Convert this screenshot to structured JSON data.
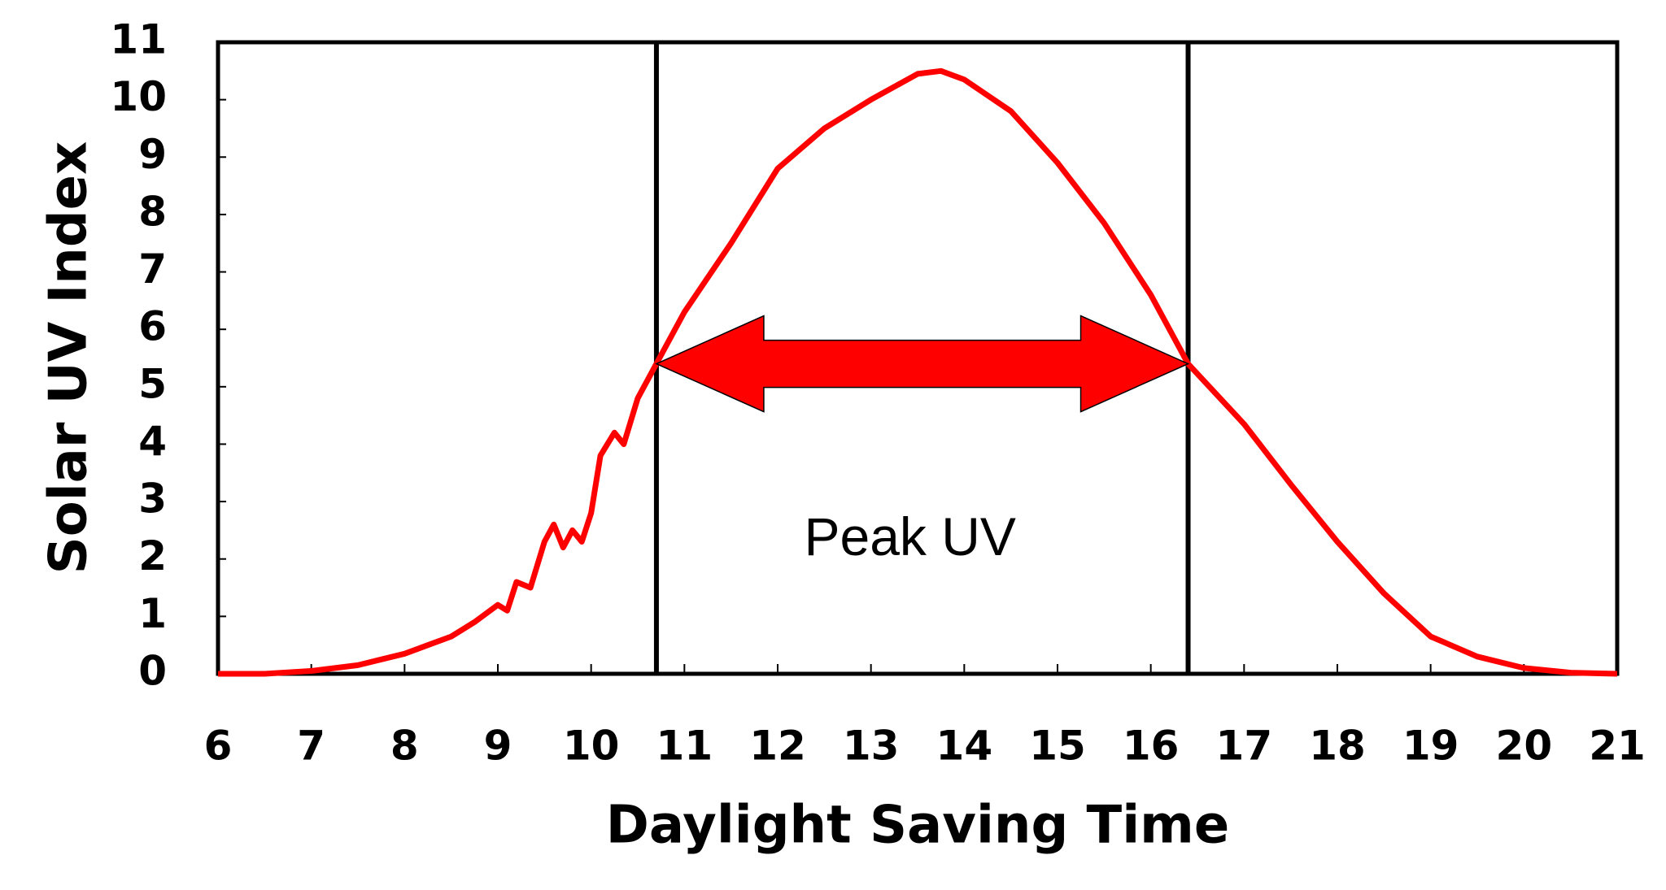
{
  "chart_data": {
    "type": "line",
    "x_label": "Daylight Saving Time",
    "y_label": "Solar UV Index",
    "x": [
      6,
      6.5,
      7,
      7.5,
      7.75,
      8,
      8.25,
      8.5,
      8.75,
      9,
      9.1,
      9.2,
      9.35,
      9.5,
      9.6,
      9.7,
      9.8,
      9.9,
      10,
      10.1,
      10.25,
      10.35,
      10.5,
      10.7,
      11,
      11.5,
      12,
      12.5,
      13,
      13.5,
      13.75,
      14,
      14.5,
      15,
      15.5,
      16,
      16.4,
      17,
      17.5,
      18,
      18.5,
      19,
      19.5,
      20,
      20.5,
      21
    ],
    "values": [
      0,
      0,
      0.05,
      0.15,
      0.25,
      0.35,
      0.5,
      0.65,
      0.9,
      1.2,
      1.1,
      1.6,
      1.5,
      2.3,
      2.6,
      2.2,
      2.5,
      2.3,
      2.8,
      3.8,
      4.2,
      4.0,
      4.8,
      5.4,
      6.3,
      7.5,
      8.8,
      9.5,
      10.0,
      10.45,
      10.5,
      10.35,
      9.8,
      8.9,
      7.85,
      6.6,
      5.4,
      4.35,
      3.3,
      2.3,
      1.4,
      0.65,
      0.3,
      0.1,
      0.02,
      0
    ],
    "color": "#ff0000",
    "xlim": [
      6,
      21
    ],
    "xticks": [
      6,
      7,
      8,
      9,
      10,
      11,
      12,
      13,
      14,
      15,
      16,
      17,
      18,
      19,
      20,
      21
    ],
    "ylim": [
      0,
      11
    ],
    "yticks": [
      0,
      1,
      2,
      3,
      4,
      5,
      6,
      7,
      8,
      9,
      10,
      11
    ],
    "grid": false,
    "annotation": {
      "text": "Peak UV",
      "x": [
        10.7,
        16.4
      ],
      "y": 5.4
    }
  }
}
